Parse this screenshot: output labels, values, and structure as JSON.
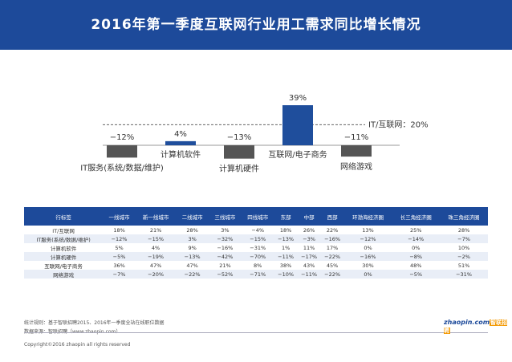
{
  "header": {
    "title": "2016年第一季度互联网行业用工需求同比增长情况"
  },
  "chart_data": {
    "type": "bar",
    "categories": [
      "IT服务(系统/数据/维护)",
      "计算机软件",
      "计算机硬件",
      "互联网/电子商务",
      "网络游戏"
    ],
    "values": [
      -12,
      4,
      -13,
      39,
      -11
    ],
    "value_labels": [
      "−12%",
      "4%",
      "−13%",
      "39%",
      "−11%"
    ],
    "colors": [
      "#555555",
      "#1f4e9c",
      "#555555",
      "#1f4e9c",
      "#555555"
    ],
    "reference_line": {
      "value": 20,
      "label": "IT/互联网：20%"
    }
  },
  "table": {
    "columns": [
      "行标签",
      "一线城市",
      "新一线城市",
      "二线城市",
      "三线城市",
      "四线城市",
      "东部",
      "中部",
      "西部",
      "环渤海经济圈",
      "长三角经济圈",
      "珠三角经济圈"
    ],
    "rows": [
      [
        "IT/互联网",
        "18%",
        "21%",
        "28%",
        "3%",
        "−4%",
        "18%",
        "26%",
        "22%",
        "13%",
        "25%",
        "28%"
      ],
      [
        "IT服务(系统/数据/维护)",
        "−12%",
        "−15%",
        "3%",
        "−32%",
        "−15%",
        "−13%",
        "−3%",
        "−16%",
        "−12%",
        "−14%",
        "−7%"
      ],
      [
        "计算机软件",
        "5%",
        "4%",
        "9%",
        "−16%",
        "−31%",
        "1%",
        "11%",
        "17%",
        "0%",
        "0%",
        "10%"
      ],
      [
        "计算机硬件",
        "−5%",
        "−19%",
        "−13%",
        "−42%",
        "−70%",
        "−11%",
        "−17%",
        "−22%",
        "−16%",
        "−8%",
        "−2%"
      ],
      [
        "互联网/电子商务",
        "36%",
        "47%",
        "47%",
        "21%",
        "8%",
        "38%",
        "43%",
        "45%",
        "30%",
        "48%",
        "51%"
      ],
      [
        "网络游戏",
        "−7%",
        "−20%",
        "−22%",
        "−52%",
        "−71%",
        "−10%",
        "−11%",
        "−22%",
        "0%",
        "−5%",
        "−31%"
      ]
    ]
  },
  "footer": {
    "rule": "统计规则：基于智联招聘2015、2016年一季度全站在线职位数据",
    "source": "数据来源：智联招聘（www.zhaopin.com）",
    "copyright": "Copyright©2016 zhaopin all rights reserved",
    "logo_en": "zhaopin.com",
    "logo_cn": "智联招聘"
  }
}
